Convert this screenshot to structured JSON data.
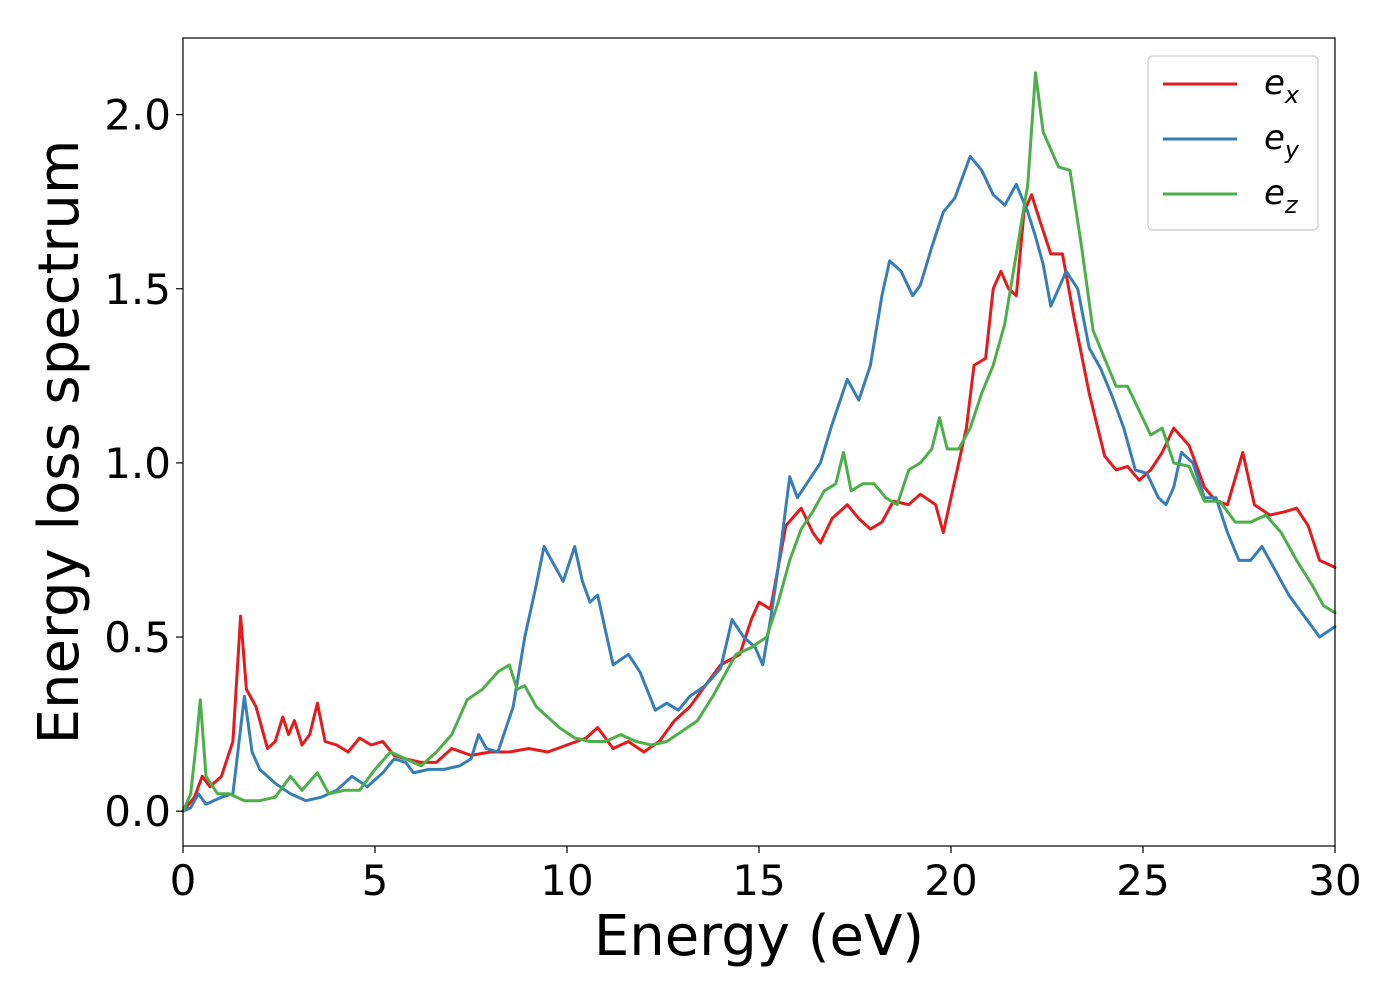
{
  "chart_data": {
    "type": "line",
    "title": "",
    "xlabel": "Energy (eV)",
    "ylabel": "Energy loss spectrum",
    "xlim": [
      0,
      30
    ],
    "ylim": [
      -0.1,
      2.22
    ],
    "xticks": [
      0,
      5,
      10,
      15,
      20,
      25,
      30
    ],
    "xtick_labels": [
      "0",
      "5",
      "10",
      "15",
      "20",
      "25",
      "30"
    ],
    "yticks": [
      0.0,
      0.5,
      1.0,
      1.5,
      2.0
    ],
    "ytick_labels": [
      "0.0",
      "0.5",
      "1.0",
      "1.5",
      "2.0"
    ],
    "grid": false,
    "legend_position": "top-right",
    "series": [
      {
        "name": "e_x",
        "label_main": "e",
        "label_sub": "x",
        "color": "#e41a1c",
        "points": [
          [
            0,
            0
          ],
          [
            0.3,
            0.04
          ],
          [
            0.5,
            0.1
          ],
          [
            0.7,
            0.07
          ],
          [
            1.0,
            0.1
          ],
          [
            1.3,
            0.2
          ],
          [
            1.5,
            0.56
          ],
          [
            1.65,
            0.35
          ],
          [
            1.9,
            0.3
          ],
          [
            2.2,
            0.18
          ],
          [
            2.4,
            0.2
          ],
          [
            2.6,
            0.27
          ],
          [
            2.75,
            0.22
          ],
          [
            2.9,
            0.26
          ],
          [
            3.1,
            0.19
          ],
          [
            3.3,
            0.22
          ],
          [
            3.5,
            0.31
          ],
          [
            3.7,
            0.2
          ],
          [
            4.0,
            0.19
          ],
          [
            4.3,
            0.17
          ],
          [
            4.6,
            0.21
          ],
          [
            4.9,
            0.19
          ],
          [
            5.2,
            0.2
          ],
          [
            5.5,
            0.16
          ],
          [
            5.8,
            0.15
          ],
          [
            6.2,
            0.14
          ],
          [
            6.6,
            0.14
          ],
          [
            7.0,
            0.18
          ],
          [
            7.5,
            0.16
          ],
          [
            8.0,
            0.17
          ],
          [
            8.5,
            0.17
          ],
          [
            9.0,
            0.18
          ],
          [
            9.5,
            0.17
          ],
          [
            10.0,
            0.19
          ],
          [
            10.5,
            0.21
          ],
          [
            10.8,
            0.24
          ],
          [
            11.2,
            0.18
          ],
          [
            11.6,
            0.2
          ],
          [
            12.0,
            0.17
          ],
          [
            12.4,
            0.2
          ],
          [
            12.8,
            0.26
          ],
          [
            13.2,
            0.3
          ],
          [
            13.6,
            0.36
          ],
          [
            14.0,
            0.42
          ],
          [
            14.5,
            0.45
          ],
          [
            14.8,
            0.55
          ],
          [
            15.0,
            0.6
          ],
          [
            15.3,
            0.58
          ],
          [
            15.7,
            0.82
          ],
          [
            16.1,
            0.87
          ],
          [
            16.4,
            0.8
          ],
          [
            16.6,
            0.77
          ],
          [
            16.9,
            0.84
          ],
          [
            17.3,
            0.88
          ],
          [
            17.6,
            0.84
          ],
          [
            17.9,
            0.81
          ],
          [
            18.2,
            0.83
          ],
          [
            18.5,
            0.89
          ],
          [
            18.9,
            0.88
          ],
          [
            19.2,
            0.91
          ],
          [
            19.6,
            0.88
          ],
          [
            19.8,
            0.8
          ],
          [
            20.0,
            0.9
          ],
          [
            20.4,
            1.1
          ],
          [
            20.6,
            1.28
          ],
          [
            20.9,
            1.3
          ],
          [
            21.1,
            1.5
          ],
          [
            21.3,
            1.55
          ],
          [
            21.5,
            1.5
          ],
          [
            21.7,
            1.48
          ],
          [
            21.9,
            1.72
          ],
          [
            22.1,
            1.77
          ],
          [
            22.3,
            1.7
          ],
          [
            22.6,
            1.6
          ],
          [
            22.9,
            1.6
          ],
          [
            23.2,
            1.42
          ],
          [
            23.6,
            1.2
          ],
          [
            24.0,
            1.02
          ],
          [
            24.3,
            0.98
          ],
          [
            24.6,
            0.99
          ],
          [
            24.9,
            0.95
          ],
          [
            25.2,
            0.98
          ],
          [
            25.5,
            1.03
          ],
          [
            25.8,
            1.1
          ],
          [
            26.2,
            1.05
          ],
          [
            26.6,
            0.93
          ],
          [
            26.9,
            0.89
          ],
          [
            27.2,
            0.88
          ],
          [
            27.6,
            1.03
          ],
          [
            27.9,
            0.88
          ],
          [
            28.3,
            0.85
          ],
          [
            28.7,
            0.86
          ],
          [
            29.0,
            0.87
          ],
          [
            29.3,
            0.82
          ],
          [
            29.6,
            0.72
          ],
          [
            30.0,
            0.7
          ]
        ]
      },
      {
        "name": "e_y",
        "label_main": "e",
        "label_sub": "y",
        "color": "#377eb8",
        "points": [
          [
            0,
            0
          ],
          [
            0.2,
            0.01
          ],
          [
            0.4,
            0.05
          ],
          [
            0.6,
            0.02
          ],
          [
            1.0,
            0.04
          ],
          [
            1.3,
            0.05
          ],
          [
            1.6,
            0.33
          ],
          [
            1.8,
            0.17
          ],
          [
            2.0,
            0.12
          ],
          [
            2.4,
            0.08
          ],
          [
            2.8,
            0.05
          ],
          [
            3.2,
            0.03
          ],
          [
            3.6,
            0.04
          ],
          [
            4.0,
            0.06
          ],
          [
            4.4,
            0.1
          ],
          [
            4.8,
            0.07
          ],
          [
            5.2,
            0.11
          ],
          [
            5.5,
            0.15
          ],
          [
            5.8,
            0.14
          ],
          [
            6.0,
            0.11
          ],
          [
            6.4,
            0.12
          ],
          [
            6.8,
            0.12
          ],
          [
            7.2,
            0.13
          ],
          [
            7.5,
            0.15
          ],
          [
            7.7,
            0.22
          ],
          [
            7.9,
            0.18
          ],
          [
            8.2,
            0.17
          ],
          [
            8.6,
            0.3
          ],
          [
            8.9,
            0.5
          ],
          [
            9.2,
            0.65
          ],
          [
            9.4,
            0.76
          ],
          [
            9.6,
            0.72
          ],
          [
            9.9,
            0.66
          ],
          [
            10.2,
            0.76
          ],
          [
            10.4,
            0.66
          ],
          [
            10.6,
            0.6
          ],
          [
            10.8,
            0.62
          ],
          [
            11.2,
            0.42
          ],
          [
            11.6,
            0.45
          ],
          [
            11.9,
            0.4
          ],
          [
            12.3,
            0.29
          ],
          [
            12.6,
            0.31
          ],
          [
            12.9,
            0.29
          ],
          [
            13.2,
            0.33
          ],
          [
            13.6,
            0.36
          ],
          [
            14.0,
            0.41
          ],
          [
            14.3,
            0.55
          ],
          [
            14.6,
            0.5
          ],
          [
            14.9,
            0.47
          ],
          [
            15.1,
            0.42
          ],
          [
            15.3,
            0.55
          ],
          [
            15.5,
            0.7
          ],
          [
            15.8,
            0.96
          ],
          [
            16.0,
            0.9
          ],
          [
            16.3,
            0.95
          ],
          [
            16.6,
            1.0
          ],
          [
            16.9,
            1.11
          ],
          [
            17.3,
            1.24
          ],
          [
            17.6,
            1.18
          ],
          [
            17.9,
            1.28
          ],
          [
            18.2,
            1.48
          ],
          [
            18.4,
            1.58
          ],
          [
            18.7,
            1.55
          ],
          [
            19.0,
            1.48
          ],
          [
            19.2,
            1.51
          ],
          [
            19.5,
            1.62
          ],
          [
            19.8,
            1.72
          ],
          [
            20.1,
            1.76
          ],
          [
            20.5,
            1.88
          ],
          [
            20.8,
            1.84
          ],
          [
            21.1,
            1.77
          ],
          [
            21.4,
            1.74
          ],
          [
            21.7,
            1.8
          ],
          [
            22.0,
            1.72
          ],
          [
            22.2,
            1.65
          ],
          [
            22.4,
            1.57
          ],
          [
            22.6,
            1.45
          ],
          [
            22.8,
            1.5
          ],
          [
            23.0,
            1.55
          ],
          [
            23.3,
            1.5
          ],
          [
            23.6,
            1.33
          ],
          [
            23.9,
            1.27
          ],
          [
            24.2,
            1.19
          ],
          [
            24.5,
            1.1
          ],
          [
            24.8,
            0.98
          ],
          [
            25.1,
            0.97
          ],
          [
            25.4,
            0.9
          ],
          [
            25.6,
            0.88
          ],
          [
            25.8,
            0.93
          ],
          [
            26.0,
            1.03
          ],
          [
            26.3,
            1.0
          ],
          [
            26.6,
            0.9
          ],
          [
            26.9,
            0.9
          ],
          [
            27.2,
            0.8
          ],
          [
            27.5,
            0.72
          ],
          [
            27.8,
            0.72
          ],
          [
            28.1,
            0.76
          ],
          [
            28.4,
            0.7
          ],
          [
            28.8,
            0.62
          ],
          [
            29.2,
            0.56
          ],
          [
            29.6,
            0.5
          ],
          [
            30.0,
            0.53
          ]
        ]
      },
      {
        "name": "e_z",
        "label_main": "e",
        "label_sub": "z",
        "color": "#4daf4a",
        "points": [
          [
            0,
            0
          ],
          [
            0.2,
            0.05
          ],
          [
            0.35,
            0.2
          ],
          [
            0.45,
            0.32
          ],
          [
            0.6,
            0.1
          ],
          [
            0.9,
            0.05
          ],
          [
            1.2,
            0.05
          ],
          [
            1.6,
            0.03
          ],
          [
            2.0,
            0.03
          ],
          [
            2.4,
            0.04
          ],
          [
            2.8,
            0.1
          ],
          [
            3.1,
            0.06
          ],
          [
            3.5,
            0.11
          ],
          [
            3.8,
            0.05
          ],
          [
            4.2,
            0.06
          ],
          [
            4.6,
            0.06
          ],
          [
            5.0,
            0.12
          ],
          [
            5.4,
            0.17
          ],
          [
            5.8,
            0.15
          ],
          [
            6.2,
            0.13
          ],
          [
            6.6,
            0.17
          ],
          [
            7.0,
            0.22
          ],
          [
            7.4,
            0.32
          ],
          [
            7.8,
            0.35
          ],
          [
            8.2,
            0.4
          ],
          [
            8.5,
            0.42
          ],
          [
            8.7,
            0.35
          ],
          [
            8.9,
            0.36
          ],
          [
            9.2,
            0.3
          ],
          [
            9.5,
            0.27
          ],
          [
            9.8,
            0.24
          ],
          [
            10.2,
            0.21
          ],
          [
            10.6,
            0.2
          ],
          [
            11.0,
            0.2
          ],
          [
            11.4,
            0.22
          ],
          [
            11.8,
            0.2
          ],
          [
            12.2,
            0.19
          ],
          [
            12.6,
            0.2
          ],
          [
            13.0,
            0.23
          ],
          [
            13.4,
            0.26
          ],
          [
            13.8,
            0.33
          ],
          [
            14.1,
            0.39
          ],
          [
            14.4,
            0.45
          ],
          [
            14.8,
            0.47
          ],
          [
            15.2,
            0.5
          ],
          [
            15.5,
            0.6
          ],
          [
            15.8,
            0.72
          ],
          [
            16.1,
            0.81
          ],
          [
            16.4,
            0.86
          ],
          [
            16.7,
            0.92
          ],
          [
            17.0,
            0.94
          ],
          [
            17.2,
            1.03
          ],
          [
            17.4,
            0.92
          ],
          [
            17.7,
            0.94
          ],
          [
            18.0,
            0.94
          ],
          [
            18.3,
            0.9
          ],
          [
            18.6,
            0.88
          ],
          [
            18.9,
            0.98
          ],
          [
            19.2,
            1.0
          ],
          [
            19.5,
            1.04
          ],
          [
            19.7,
            1.13
          ],
          [
            19.9,
            1.04
          ],
          [
            20.2,
            1.04
          ],
          [
            20.5,
            1.1
          ],
          [
            20.8,
            1.2
          ],
          [
            21.1,
            1.28
          ],
          [
            21.4,
            1.4
          ],
          [
            21.7,
            1.6
          ],
          [
            22.0,
            1.8
          ],
          [
            22.2,
            2.12
          ],
          [
            22.4,
            1.95
          ],
          [
            22.6,
            1.9
          ],
          [
            22.8,
            1.85
          ],
          [
            23.1,
            1.84
          ],
          [
            23.4,
            1.62
          ],
          [
            23.7,
            1.38
          ],
          [
            24.0,
            1.3
          ],
          [
            24.3,
            1.22
          ],
          [
            24.6,
            1.22
          ],
          [
            24.9,
            1.15
          ],
          [
            25.2,
            1.08
          ],
          [
            25.5,
            1.1
          ],
          [
            25.8,
            1.0
          ],
          [
            26.2,
            0.99
          ],
          [
            26.6,
            0.89
          ],
          [
            27.0,
            0.89
          ],
          [
            27.4,
            0.83
          ],
          [
            27.8,
            0.83
          ],
          [
            28.2,
            0.85
          ],
          [
            28.6,
            0.8
          ],
          [
            29.0,
            0.72
          ],
          [
            29.4,
            0.65
          ],
          [
            29.7,
            0.59
          ],
          [
            30.0,
            0.57
          ]
        ]
      }
    ]
  }
}
